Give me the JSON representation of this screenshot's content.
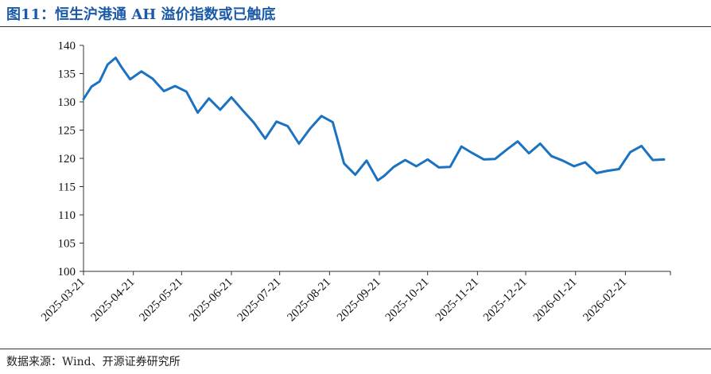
{
  "title": "图11：恒生沪港通 AH 溢价指数或已触底",
  "source": "数据来源：Wind、开源证券研究所",
  "colors": {
    "line": "#1a72c0",
    "title": "#1a5aa8",
    "axis": "#333333"
  },
  "chart_data": {
    "type": "line",
    "title": "",
    "xlabel": "",
    "ylabel": "",
    "ylim": [
      100,
      140
    ],
    "yticks": [
      100,
      105,
      110,
      115,
      120,
      125,
      130,
      135,
      140
    ],
    "xlim": [
      "2025-03-21",
      "2026-03-21"
    ],
    "xticks": [
      "2025-03-21",
      "2025-04-21",
      "2025-05-21",
      "2025-06-21",
      "2025-07-21",
      "2025-08-21",
      "2025-09-21",
      "2025-10-21",
      "2025-11-21",
      "2025-12-21",
      "2026-01-21",
      "2026-02-21"
    ],
    "grid": false,
    "legend": "none",
    "series": [
      {
        "x": [
          "2025-03-21",
          "2025-03-26",
          "2025-03-31",
          "2025-04-05",
          "2025-04-10",
          "2025-04-14",
          "2025-04-19",
          "2025-04-26",
          "2025-05-03",
          "2025-05-10",
          "2025-05-17",
          "2025-05-24",
          "2025-05-31",
          "2025-06-07",
          "2025-06-14",
          "2025-06-21",
          "2025-06-28",
          "2025-07-05",
          "2025-07-12",
          "2025-07-19",
          "2025-07-26",
          "2025-08-02",
          "2025-08-09",
          "2025-08-16",
          "2025-08-23",
          "2025-08-30",
          "2025-09-06",
          "2025-09-13",
          "2025-09-20",
          "2025-09-24",
          "2025-09-30",
          "2025-10-07",
          "2025-10-14",
          "2025-10-21",
          "2025-10-28",
          "2025-11-04",
          "2025-11-11",
          "2025-11-18",
          "2025-11-25",
          "2025-12-02",
          "2025-12-09",
          "2025-12-16",
          "2025-12-23",
          "2025-12-30",
          "2026-01-06",
          "2026-01-13",
          "2026-01-20",
          "2026-01-27",
          "2026-02-03",
          "2026-02-10",
          "2026-02-17",
          "2026-02-24",
          "2026-03-03",
          "2026-03-10",
          "2026-03-17"
        ],
        "y": [
          130.5,
          132.7,
          133.6,
          136.6,
          137.8,
          136.0,
          134.0,
          135.4,
          134.1,
          131.9,
          132.8,
          131.8,
          128.1,
          130.6,
          128.6,
          130.8,
          128.5,
          126.3,
          123.5,
          126.5,
          125.7,
          122.6,
          125.3,
          127.5,
          126.4,
          119.1,
          117.1,
          119.6,
          116.1,
          116.9,
          118.5,
          119.7,
          118.6,
          119.8,
          118.4,
          118.5,
          122.1,
          120.9,
          119.8,
          119.9,
          121.5,
          123.0,
          120.9,
          122.6,
          120.4,
          119.6,
          118.6,
          119.3,
          117.4,
          117.8,
          118.1,
          121.1,
          122.2,
          119.7,
          119.8
        ]
      }
    ]
  }
}
